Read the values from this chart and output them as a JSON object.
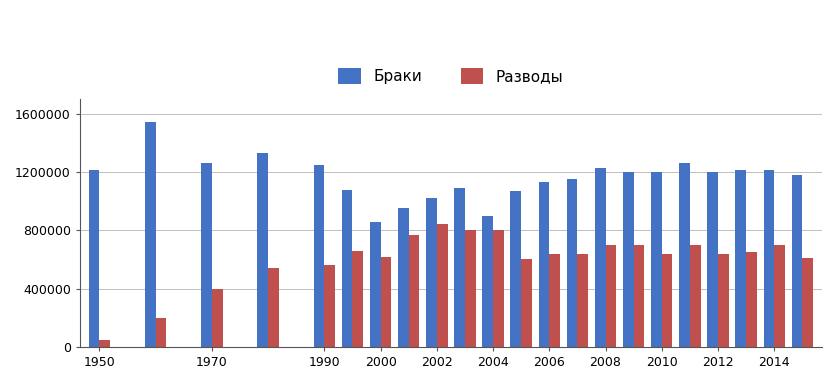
{
  "years": [
    1950,
    1960,
    1970,
    1980,
    1990,
    1995,
    2000,
    2001,
    2002,
    2003,
    2004,
    2005,
    2006,
    2007,
    2008,
    2009,
    2010,
    2011,
    2012,
    2013,
    2014,
    2015
  ],
  "marriages": [
    1210000,
    1540000,
    1260000,
    1330000,
    1250000,
    1075000,
    860000,
    950000,
    1020000,
    1090000,
    900000,
    1070000,
    1130000,
    1150000,
    1230000,
    1200000,
    1200000,
    1260000,
    1200000,
    1210000,
    1210000,
    1180000
  ],
  "divorces": [
    50000,
    200000,
    400000,
    540000,
    560000,
    660000,
    620000,
    770000,
    840000,
    800000,
    800000,
    600000,
    640000,
    640000,
    700000,
    700000,
    640000,
    700000,
    640000,
    650000,
    700000,
    610000
  ],
  "bar_color_marriages": "#4472C4",
  "bar_color_divorces": "#C0504D",
  "legend_marriages": "Браки",
  "legend_divorces": "Разводы",
  "yticks": [
    0,
    400000,
    800000,
    1200000,
    1600000
  ],
  "ytick_labels": [
    "0",
    "400000",
    "800000",
    "1200000",
    "1600000"
  ],
  "ylim": [
    0,
    1700000
  ],
  "xtick_years_show": [
    1950,
    1970,
    1990,
    2000,
    2002,
    2004,
    2006,
    2008,
    2010,
    2012,
    2014
  ],
  "background_color": "#FFFFFF",
  "grid_color": "#BEBEBE"
}
